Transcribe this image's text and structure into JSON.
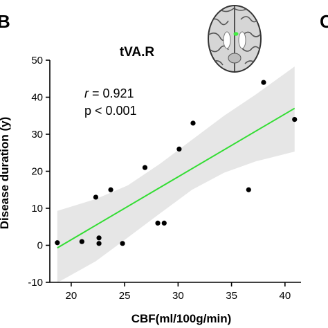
{
  "panel_letters": [
    "B",
    "C"
  ],
  "stats": {
    "r_symbol": "r",
    "r_rest": " = 0.921",
    "p_line": "p < 0.001"
  },
  "colors": {
    "fit_line": "#33dd33",
    "ci_band": "#e6e6e6",
    "points": "#000000",
    "axis": "#000000",
    "brain_highlight": "#44ee44"
  },
  "brain_inset": {
    "icon": "axial-brain-slice-icon",
    "region": "tVA.R"
  },
  "chart_data": {
    "type": "scatter",
    "title": "tVA.R",
    "xlabel": "CBF(ml/100g/min)",
    "ylabel": "Disease duration (y)",
    "xlim": [
      18,
      41.5
    ],
    "ylim": [
      -10,
      50
    ],
    "xticks": [
      20,
      25,
      30,
      35,
      40
    ],
    "yticks": [
      -10,
      0,
      10,
      20,
      30,
      40,
      50
    ],
    "grid": false,
    "points": [
      {
        "x": 18.7,
        "y": 0.7
      },
      {
        "x": 21.0,
        "y": 1.0
      },
      {
        "x": 22.3,
        "y": 13
      },
      {
        "x": 22.6,
        "y": 2
      },
      {
        "x": 22.6,
        "y": 0.5
      },
      {
        "x": 23.7,
        "y": 15
      },
      {
        "x": 24.8,
        "y": 0.5
      },
      {
        "x": 26.9,
        "y": 21
      },
      {
        "x": 28.1,
        "y": 6
      },
      {
        "x": 28.7,
        "y": 6
      },
      {
        "x": 30.1,
        "y": 26
      },
      {
        "x": 31.4,
        "y": 33
      },
      {
        "x": 36.6,
        "y": 15
      },
      {
        "x": 38.0,
        "y": 44
      },
      {
        "x": 40.9,
        "y": 34
      }
    ],
    "fit_line": {
      "x": [
        18.7,
        40.9
      ],
      "y": [
        -0.7,
        37
      ]
    },
    "ci_band": {
      "x": [
        18.7,
        22.3,
        25.3,
        28.3,
        31.3,
        34.3,
        37.3,
        40.9
      ],
      "upper": [
        9.3,
        12.5,
        16.2,
        22.0,
        28.5,
        35.0,
        40.8,
        48.3
      ],
      "lower": [
        -10.1,
        -4.3,
        2.1,
        8.6,
        15.0,
        19.6,
        22.7,
        25.3
      ]
    }
  }
}
